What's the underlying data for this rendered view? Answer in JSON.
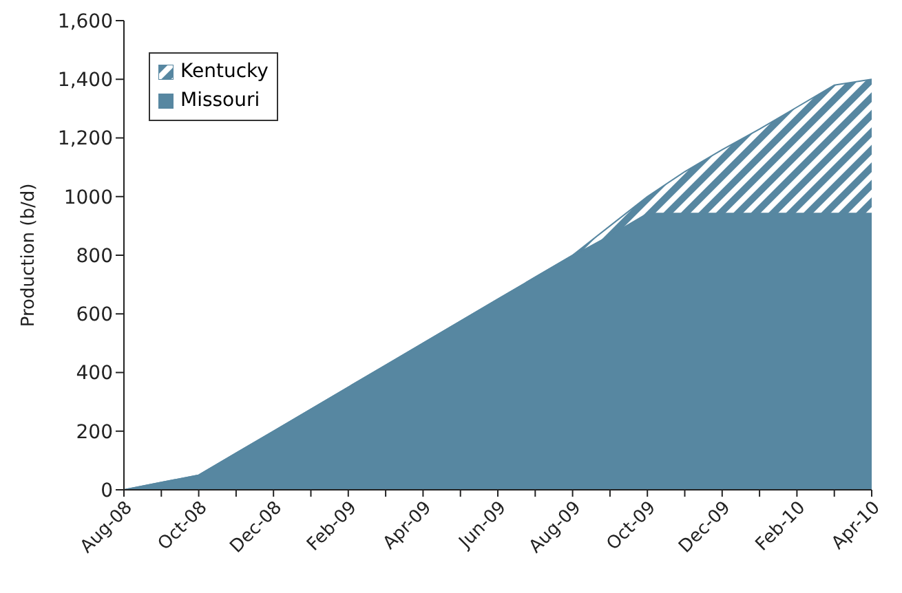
{
  "chart_data": {
    "type": "area",
    "stacked": true,
    "ylabel": "Production (b/d)",
    "categories": [
      "Aug-08",
      null,
      "Oct-08",
      null,
      "Dec-08",
      null,
      "Feb-09",
      null,
      "Apr-09",
      null,
      "Jun-09",
      null,
      "Aug-09",
      null,
      "Oct-09",
      null,
      "Dec-09",
      null,
      "Feb-10",
      null,
      "Apr-10"
    ],
    "series": [
      {
        "name": "Missouri",
        "color": "#5787a1",
        "values": [
          0,
          25,
          50,
          125,
          200,
          275,
          350,
          425,
          500,
          575,
          650,
          725,
          800,
          870,
          945,
          945,
          945,
          945,
          945,
          945,
          945
        ]
      },
      {
        "name": "Kentucky",
        "color": "#5787a1",
        "values": [
          0,
          0,
          0,
          0,
          0,
          0,
          0,
          0,
          0,
          0,
          0,
          0,
          0,
          30,
          55,
          140,
          215,
          285,
          360,
          435,
          455
        ]
      }
    ],
    "ylim": [
      0,
      1600
    ],
    "yticks": [
      0,
      200,
      400,
      600,
      800,
      1000,
      {
        "value": 1200,
        "label": "1,200"
      },
      {
        "value": 1400,
        "label": "1,400"
      },
      {
        "value": 1600,
        "label": "1,600"
      }
    ],
    "legend": "top left"
  }
}
